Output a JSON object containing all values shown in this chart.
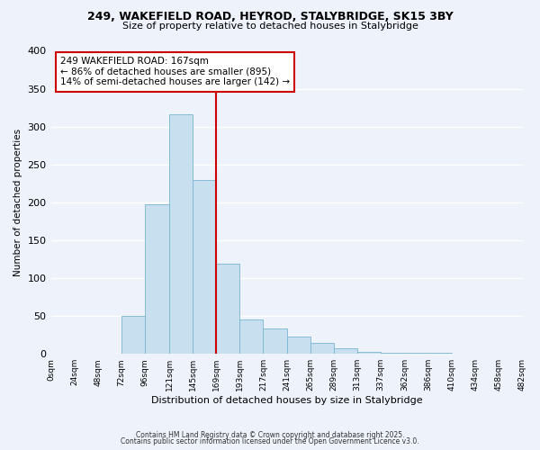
{
  "title": "249, WAKEFIELD ROAD, HEYROD, STALYBRIDGE, SK15 3BY",
  "subtitle": "Size of property relative to detached houses in Stalybridge",
  "xlabel": "Distribution of detached houses by size in Stalybridge",
  "ylabel": "Number of detached properties",
  "bin_edges": [
    0,
    24,
    48,
    72,
    96,
    121,
    145,
    169,
    193,
    217,
    241,
    265,
    289,
    313,
    337,
    362,
    386,
    410,
    434,
    458,
    482
  ],
  "bin_labels": [
    "0sqm",
    "24sqm",
    "48sqm",
    "72sqm",
    "96sqm",
    "121sqm",
    "145sqm",
    "169sqm",
    "193sqm",
    "217sqm",
    "241sqm",
    "265sqm",
    "289sqm",
    "313sqm",
    "337sqm",
    "362sqm",
    "386sqm",
    "410sqm",
    "434sqm",
    "458sqm",
    "482sqm"
  ],
  "counts": [
    0,
    0,
    0,
    50,
    197,
    316,
    230,
    119,
    45,
    33,
    23,
    14,
    7,
    3,
    2,
    1,
    1,
    0,
    0,
    0
  ],
  "bar_color": "#c8dff0",
  "bar_edge_color": "#7ab4d0",
  "vline_x": 169,
  "vline_color": "#cc0000",
  "annotation_title": "249 WAKEFIELD ROAD: 167sqm",
  "annotation_line1": "← 86% of detached houses are smaller (895)",
  "annotation_line2": "14% of semi-detached houses are larger (142) →",
  "ylim": [
    0,
    400
  ],
  "yticks": [
    0,
    50,
    100,
    150,
    200,
    250,
    300,
    350,
    400
  ],
  "footer1": "Contains HM Land Registry data © Crown copyright and database right 2025.",
  "footer2": "Contains public sector information licensed under the Open Government Licence v3.0.",
  "bg_color": "#eef2fb",
  "grid_color": "#ffffff",
  "annotation_box_color": "#ffffff",
  "annotation_box_edge": "#cc0000"
}
